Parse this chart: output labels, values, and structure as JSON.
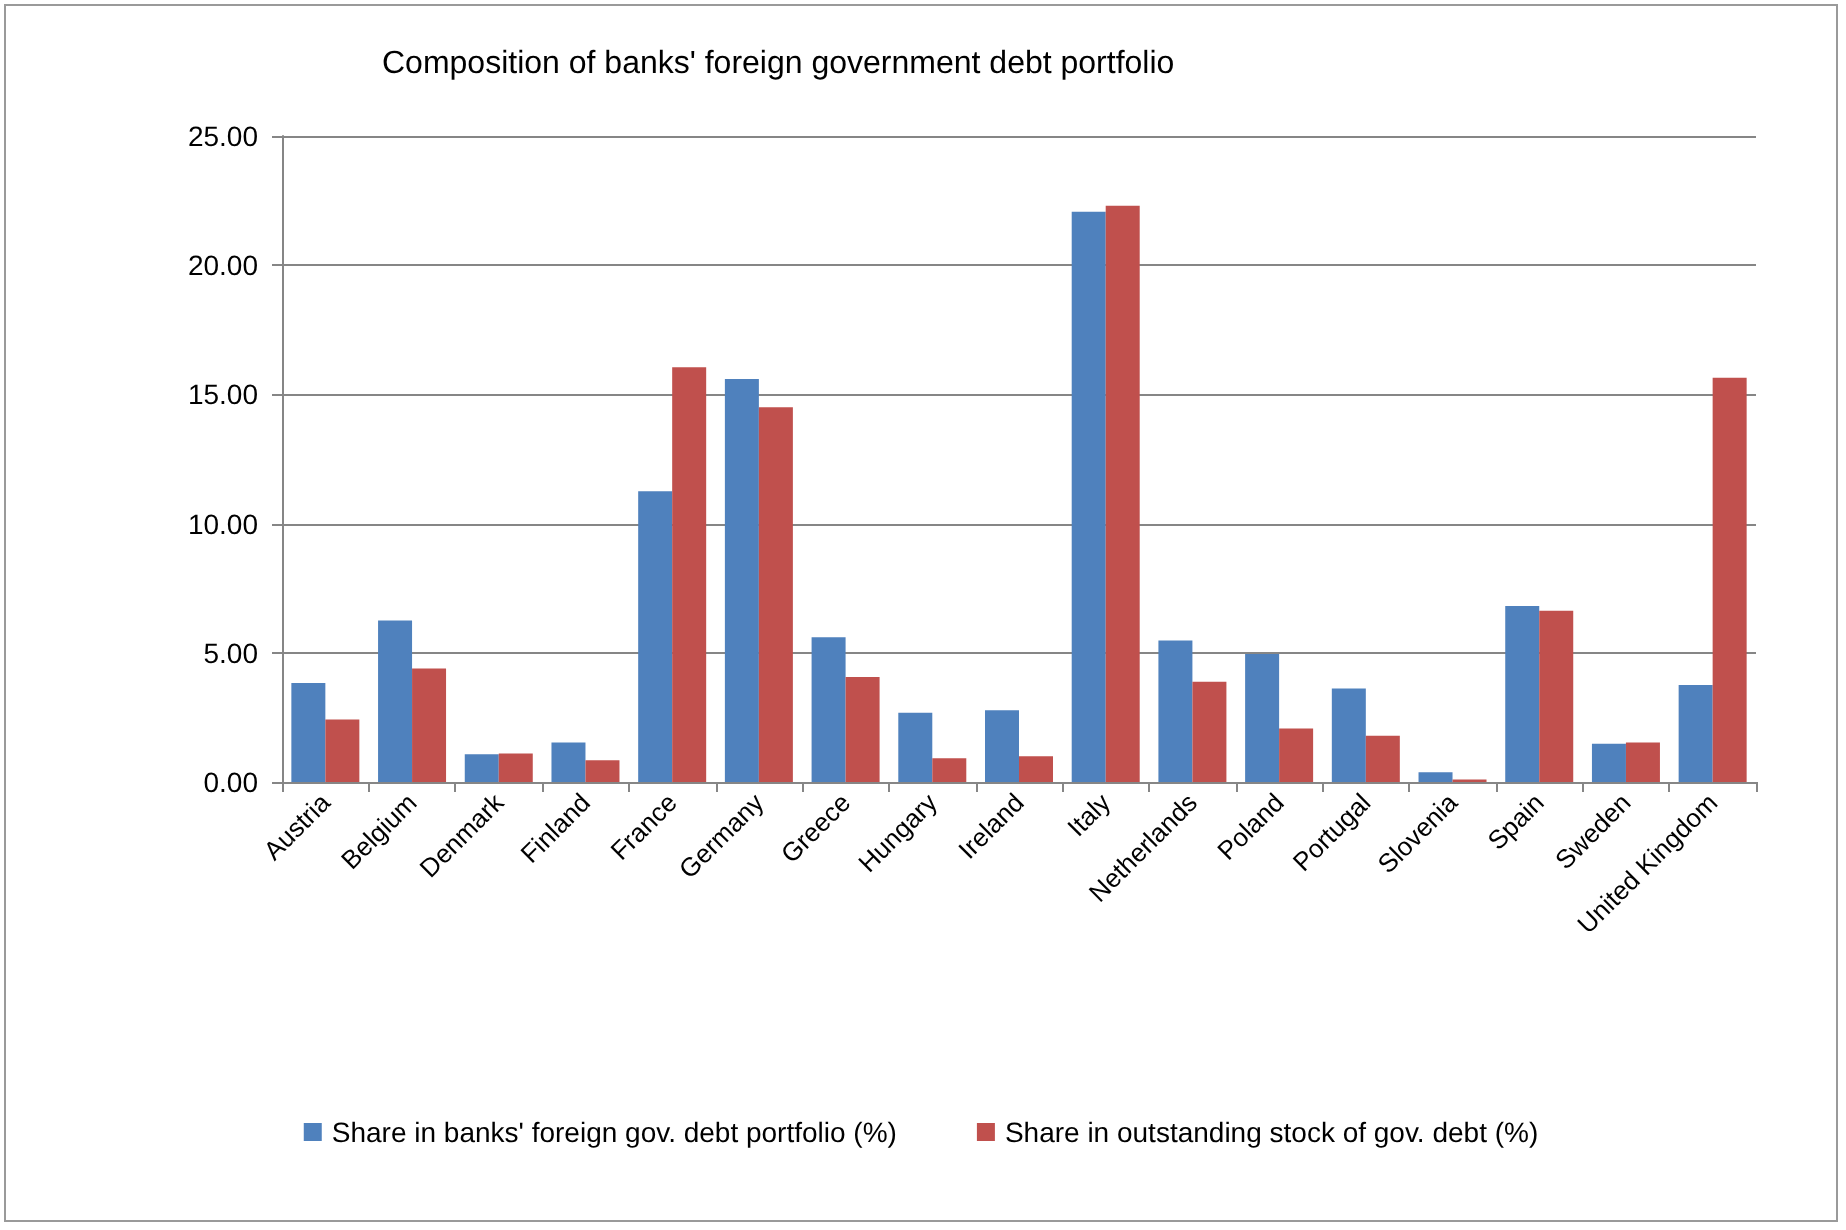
{
  "chart_data": {
    "type": "bar",
    "title": "Composition of banks' foreign government debt portfolio",
    "categories": [
      "Austria",
      "Belgium",
      "Denmark",
      "Finland",
      "France",
      "Germany",
      "Greece",
      "Hungary",
      "Ireland",
      "Italy",
      "Netherlands",
      "Poland",
      "Portugal",
      "Slovenia",
      "Spain",
      "Sweden",
      "United Kingdom"
    ],
    "series": [
      {
        "name": "Share in banks' foreign gov. debt portfolio (%)",
        "color": "#4f81bd",
        "values": [
          3.83,
          6.25,
          1.07,
          1.53,
          11.25,
          15.6,
          5.6,
          2.68,
          2.78,
          22.07,
          5.48,
          4.95,
          3.62,
          0.38,
          6.81,
          1.48,
          3.75
        ]
      },
      {
        "name": "Share in outstanding stock of gov. debt (%)",
        "color": "#c0504d",
        "values": [
          2.42,
          4.39,
          1.1,
          0.84,
          16.05,
          14.5,
          4.06,
          0.92,
          1.0,
          22.3,
          3.88,
          2.07,
          1.79,
          0.1,
          6.63,
          1.53,
          15.64
        ]
      }
    ],
    "ylim": [
      0,
      25
    ],
    "yticks": [
      {
        "value": 0,
        "label": "0.00"
      },
      {
        "value": 5,
        "label": "5.00"
      },
      {
        "value": 10,
        "label": "10.00"
      },
      {
        "value": 15,
        "label": "15.00"
      },
      {
        "value": 20,
        "label": "20.00"
      },
      {
        "value": 25,
        "label": "25.00"
      }
    ],
    "grid": "y",
    "legend": "bottom"
  }
}
